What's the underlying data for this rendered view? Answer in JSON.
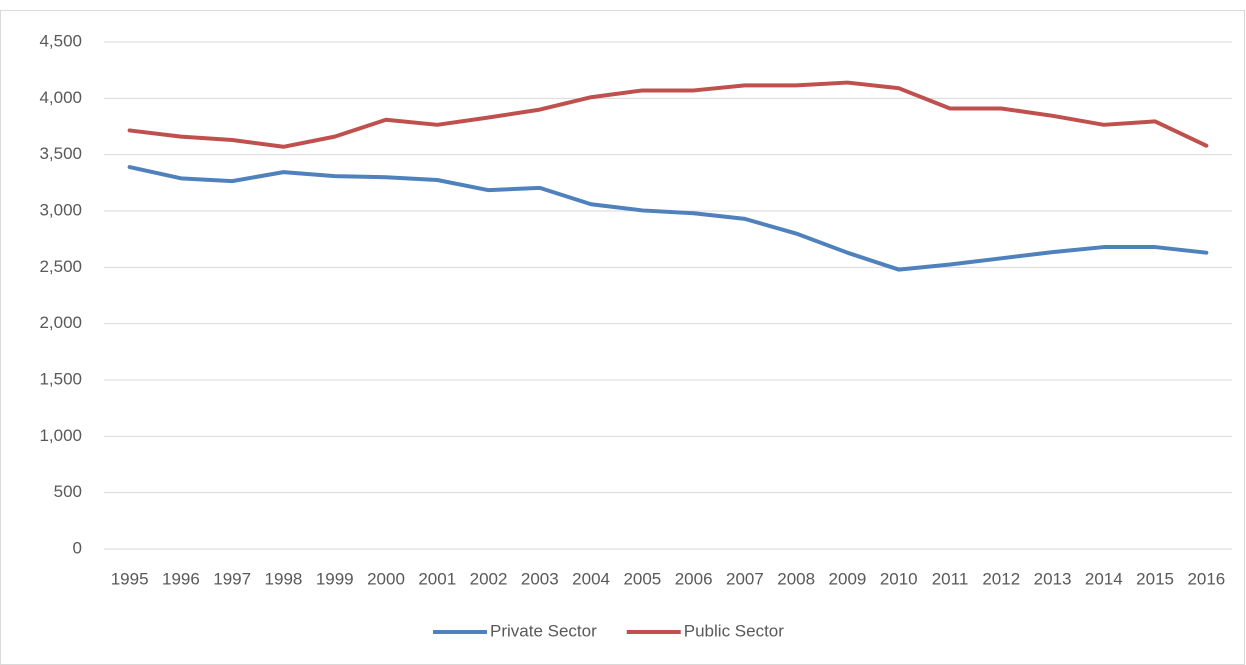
{
  "chart_data": {
    "type": "line",
    "categories": [
      "1995",
      "1996",
      "1997",
      "1998",
      "1999",
      "2000",
      "2001",
      "2002",
      "2003",
      "2004",
      "2005",
      "2006",
      "2007",
      "2008",
      "2009",
      "2010",
      "2011",
      "2012",
      "2013",
      "2014",
      "2015",
      "2016"
    ],
    "series": [
      {
        "name": "Private Sector",
        "color": "#4f81bd",
        "values": [
          3390,
          3290,
          3265,
          3345,
          3310,
          3300,
          3275,
          3185,
          3205,
          3060,
          3005,
          2980,
          2930,
          2800,
          2630,
          2480,
          2525,
          2580,
          2635,
          2680,
          2680,
          2630
        ]
      },
      {
        "name": "Public Sector",
        "color": "#c0504d",
        "values": [
          3715,
          3660,
          3630,
          3570,
          3660,
          3810,
          3765,
          3830,
          3900,
          4010,
          4070,
          4070,
          4115,
          4115,
          4140,
          4090,
          3910,
          3910,
          3845,
          3765,
          3795,
          3580
        ]
      }
    ],
    "ylim": [
      0,
      4500
    ],
    "yticks": [
      0,
      500,
      {
        "value": 1000,
        "label": "1,000"
      },
      {
        "value": 1500,
        "label": "1,500"
      },
      {
        "value": 2000,
        "label": "2,000"
      },
      {
        "value": 2500,
        "label": "2,500"
      },
      {
        "value": 3000,
        "label": "3,000"
      },
      {
        "value": 3500,
        "label": "3,500"
      },
      {
        "value": 4000,
        "label": "4,000"
      },
      {
        "value": 4500,
        "label": "4,500"
      }
    ],
    "grid": true,
    "legend": "bottom"
  }
}
